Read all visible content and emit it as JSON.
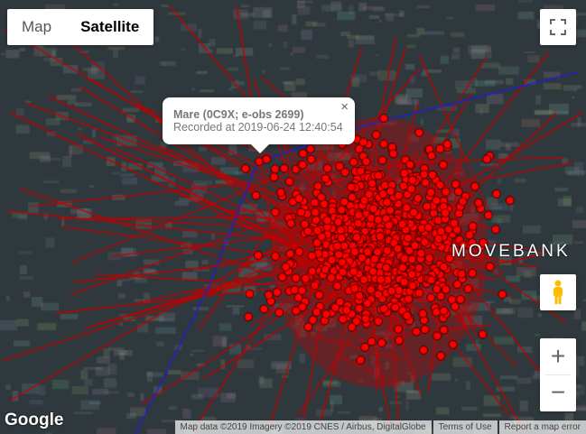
{
  "map_type": {
    "options": [
      "Map",
      "Satellite"
    ],
    "selected": "Satellite"
  },
  "popup": {
    "title": "Mare (0C9X; e-obs 2699)",
    "subtitle": "Recorded at 2019-06-24 12:40:54",
    "close": "×"
  },
  "controls": {
    "fullscreen_icon": "fullscreen-icon",
    "pegman_icon": "pegman-icon",
    "zoom_in": "+",
    "zoom_out": "−"
  },
  "logos": {
    "google": "Google",
    "movebank": "MOVEBANK"
  },
  "attribution": {
    "map_data": "Map data ©2019 Imagery ©2019 CNES / Airbus, DigitalGlobe",
    "terms": "Terms of Use",
    "report": "Report a map error"
  },
  "colors": {
    "track": "#c40000",
    "point": "#ff0000",
    "highlight_track": "#2020d0"
  }
}
